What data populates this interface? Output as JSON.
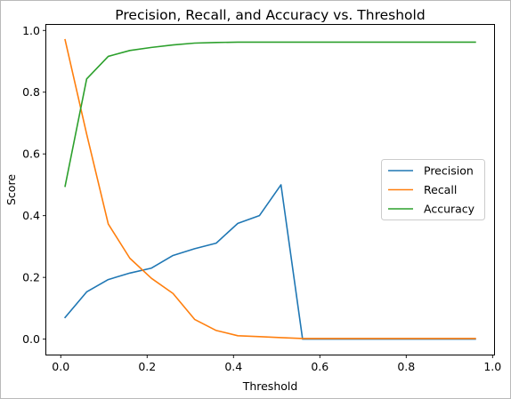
{
  "chart_data": {
    "type": "line",
    "title": "Precision, Recall, and Accuracy vs. Threshold",
    "xlabel": "Threshold",
    "ylabel": "Score",
    "xlim": [
      -0.0335,
      1.0035
    ],
    "ylim": [
      -0.05,
      1.018
    ],
    "xticks": [
      0.0,
      0.2,
      0.4,
      0.6,
      0.8,
      1.0
    ],
    "xtick_labels": [
      "0.0",
      "0.2",
      "0.4",
      "0.6",
      "0.8",
      "1.0"
    ],
    "yticks": [
      0.0,
      0.2,
      0.4,
      0.6,
      0.8,
      1.0
    ],
    "ytick_labels": [
      "0.0",
      "0.2",
      "0.4",
      "0.6",
      "0.8",
      "1.0"
    ],
    "grid": false,
    "legend_position": "center-right",
    "x": [
      0.01,
      0.06,
      0.11,
      0.16,
      0.21,
      0.26,
      0.31,
      0.36,
      0.41,
      0.46,
      0.51,
      0.56,
      0.61,
      0.66,
      0.71,
      0.76,
      0.81,
      0.86,
      0.91,
      0.96
    ],
    "series": [
      {
        "name": "Precision",
        "color": "#1f77b4",
        "values": [
          0.07,
          0.153,
          0.193,
          0.214,
          0.23,
          0.271,
          0.293,
          0.311,
          0.375,
          0.4,
          0.5,
          0.0,
          0.0,
          0.0,
          0.0,
          0.0,
          0.0,
          0.0,
          0.0,
          0.0
        ]
      },
      {
        "name": "Recall",
        "color": "#ff7f0e",
        "values": [
          0.97,
          0.664,
          0.373,
          0.262,
          0.197,
          0.148,
          0.064,
          0.028,
          0.011,
          0.008,
          0.005,
          0.002,
          0.002,
          0.002,
          0.002,
          0.002,
          0.002,
          0.002,
          0.002,
          0.002
        ]
      },
      {
        "name": "Accuracy",
        "color": "#2ca02c",
        "values": [
          0.495,
          0.843,
          0.916,
          0.935,
          0.945,
          0.953,
          0.959,
          0.961,
          0.962,
          0.962,
          0.962,
          0.962,
          0.962,
          0.962,
          0.962,
          0.962,
          0.962,
          0.962,
          0.962,
          0.962
        ]
      }
    ]
  }
}
